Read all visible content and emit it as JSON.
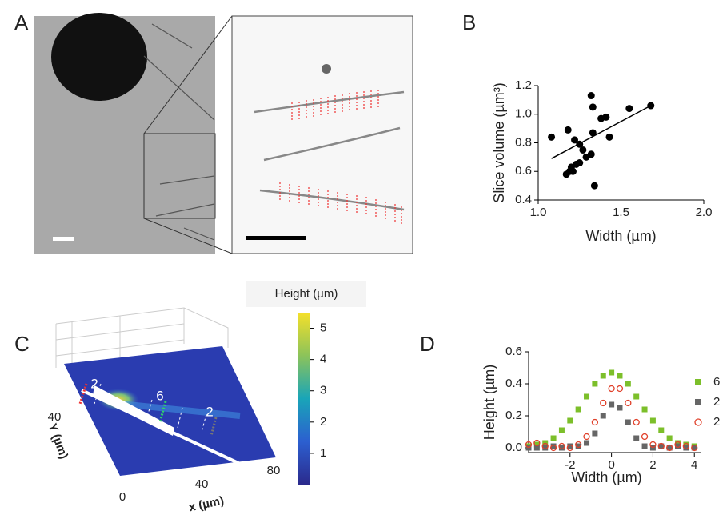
{
  "panel_labels": [
    "A",
    "B",
    "C",
    "D"
  ],
  "chart_data": [
    {
      "type": "scatter",
      "x_label": "Width (µm)",
      "y_label": "Slice volume (µm³)",
      "xlim": [
        1.0,
        2.0
      ],
      "xticks": [
        {
          "value": 1.0,
          "label": "1.0"
        },
        1.5,
        {
          "value": 2.0,
          "label": "2.0"
        }
      ],
      "ylim": [
        0.4,
        1.2
      ],
      "yticks": [
        0.4,
        0.6,
        0.8,
        {
          "value": 1.0,
          "label": "1.0"
        },
        1.2
      ],
      "series": [
        {
          "color": "#000000",
          "marker": "circle",
          "x": [
            1.08,
            1.18,
            1.2,
            1.17,
            1.19,
            1.21,
            1.23,
            1.25,
            1.22,
            1.25,
            1.27,
            1.29,
            1.32,
            1.33,
            1.33,
            1.32,
            1.34,
            1.38,
            1.41,
            1.43,
            1.55,
            1.68
          ],
          "values": [
            0.84,
            0.89,
            0.63,
            0.58,
            0.6,
            0.6,
            0.65,
            0.66,
            0.82,
            0.79,
            0.75,
            0.7,
            1.13,
            1.05,
            0.87,
            0.72,
            0.5,
            0.97,
            0.98,
            0.84,
            1.04,
            1.06
          ]
        }
      ],
      "fit_line": {
        "x": [
          1.08,
          1.68
        ],
        "y": [
          0.69,
          1.06
        ]
      }
    },
    {
      "type": "scatter",
      "x_label": "Width (µm)",
      "y_label": "Height (µm)",
      "xlim": [
        -4,
        4.3
      ],
      "xticks": [
        -2,
        0,
        2,
        4
      ],
      "ylim": [
        -0.03,
        0.6
      ],
      "yticks": [
        {
          "value": 0,
          "label": "0.0"
        },
        0.2,
        0.4,
        0.6
      ],
      "x": [
        -4,
        -3.6,
        -3.2,
        -2.8,
        -2.4,
        -2,
        -1.6,
        -1.2,
        -0.8,
        -0.4,
        0,
        0.4,
        0.8,
        1.2,
        1.6,
        2,
        2.4,
        2.8,
        3.2,
        3.6,
        4
      ],
      "series": [
        {
          "name": "6",
          "color": "#7cbf2a",
          "marker": "square",
          "values": [
            0.01,
            0.02,
            0.03,
            0.06,
            0.11,
            0.17,
            0.24,
            0.32,
            0.4,
            0.45,
            0.47,
            0.45,
            0.4,
            0.32,
            0.24,
            0.17,
            0.11,
            0.06,
            0.03,
            0.02,
            0.01
          ]
        },
        {
          "name": "2",
          "color": "#666666",
          "marker": "square",
          "values": [
            0,
            0,
            0,
            0.01,
            0,
            0.01,
            0.01,
            0.03,
            0.09,
            0.2,
            0.27,
            0.25,
            0.16,
            0.06,
            0.01,
            0,
            0.01,
            0,
            0.01,
            0,
            0
          ]
        },
        {
          "name": "2",
          "color": "#e0402a",
          "marker": "circle-open",
          "values": [
            0.02,
            0.03,
            0.01,
            0,
            0.01,
            0,
            0.02,
            0.07,
            0.16,
            0.28,
            0.37,
            0.37,
            0.28,
            0.16,
            0.07,
            0.02,
            0.01,
            0,
            0.02,
            0.01,
            0
          ]
        }
      ]
    }
  ],
  "colorbar": {
    "title": "Height (µm)",
    "range": [
      0,
      5.5
    ],
    "ticks": [
      1,
      2,
      3,
      4,
      5
    ]
  },
  "panel_c": {
    "section_labels": [
      "2",
      "6",
      "2"
    ],
    "y_label": "Y (µm)",
    "y_ticks": [
      40
    ],
    "x_label": "x (µm)",
    "x_ticks": [
      0,
      40,
      80
    ]
  }
}
